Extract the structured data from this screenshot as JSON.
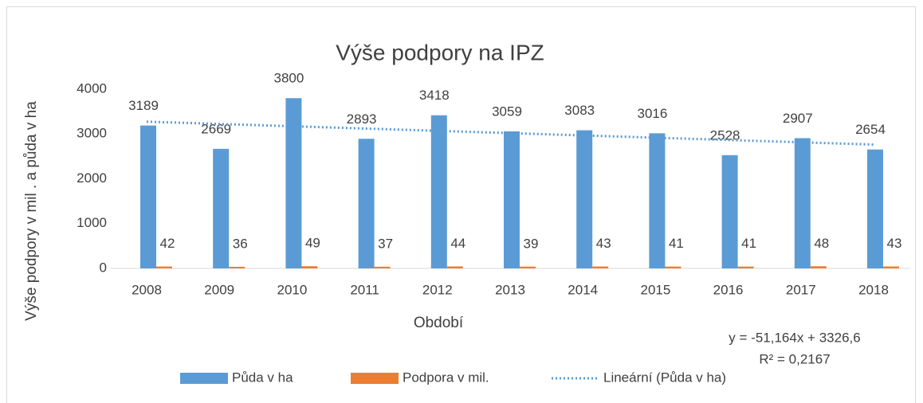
{
  "chart_data": {
    "type": "bar",
    "title": "Výše podpory na IPZ",
    "x_label": "Období",
    "y_label": "Výše podpory v mil . a půda v ha",
    "categories": [
      "2008",
      "2009",
      "2010",
      "2011",
      "2012",
      "2013",
      "2014",
      "2015",
      "2016",
      "2017",
      "2018"
    ],
    "series": [
      {
        "name": "Půda v ha",
        "color": "#5b9bd5",
        "values": [
          3189,
          2669,
          3800,
          2893,
          3418,
          3059,
          3083,
          3016,
          2528,
          2907,
          2654
        ]
      },
      {
        "name": "Podpora v mil.",
        "color": "#ed7d31",
        "values": [
          42,
          36,
          49,
          37,
          44,
          39,
          43,
          41,
          41,
          48,
          43
        ]
      }
    ],
    "trendline": {
      "name": "Lineární (Půda v ha)",
      "color": "#5b9bd5",
      "equation": "y = -51,164x + 3326,6",
      "r_squared": "R² = 0,2167",
      "slope": -51.164,
      "intercept": 3326.6
    },
    "ylim": [
      0,
      4000
    ],
    "yticks": [
      0,
      1000,
      2000,
      3000,
      4000
    ],
    "grid": false,
    "legend": "bottom"
  }
}
